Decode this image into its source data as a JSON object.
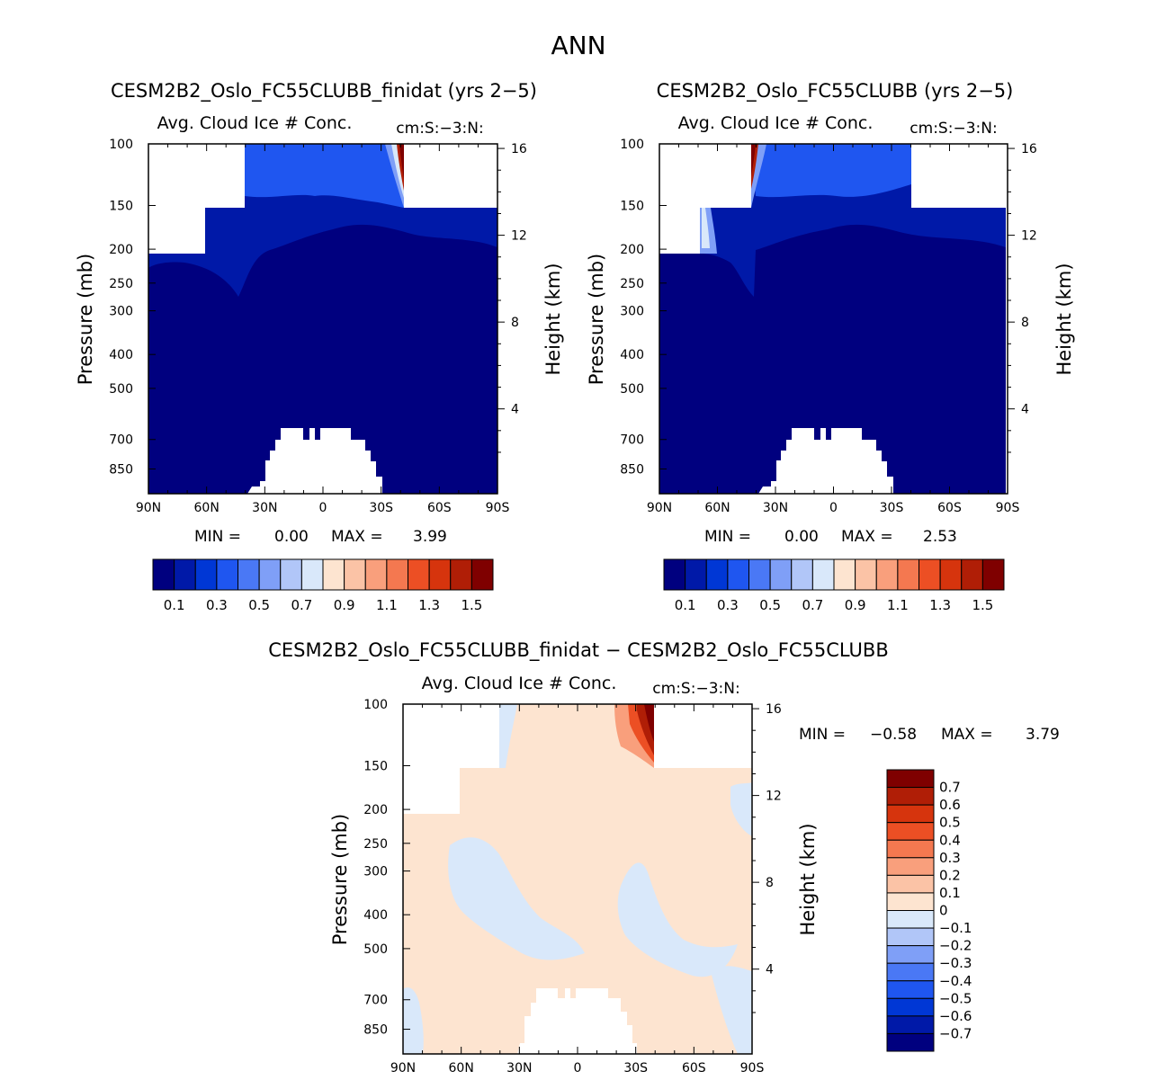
{
  "figure_title": "ANN",
  "chart_data": [
    {
      "type": "heatmap",
      "name": "panel-left",
      "case_title": "CESM2B2_Oslo_FC55CLUBB_finidat (yrs 2−5)",
      "title": "Avg. Cloud Ice # Conc.",
      "units": "cm:S:−3:N:",
      "ylabel": "Pressure (mb)",
      "ylabel_right": "Height (km)",
      "x_ticks": [
        "90N",
        "60N",
        "30N",
        "0",
        "30S",
        "60S",
        "90S"
      ],
      "xlim": [
        90,
        -90
      ],
      "p_ticks": [
        100,
        150,
        200,
        250,
        300,
        400,
        500,
        700,
        850
      ],
      "plim": [
        100,
        1000
      ],
      "z_ticks": [
        16,
        12,
        8,
        4
      ],
      "min_label": "MIN =",
      "min_value": "0.00",
      "max_label": "MAX =",
      "max_value": "3.99",
      "colorbar_labels": [
        "0.1",
        "0.3",
        "0.5",
        "0.7",
        "0.9",
        "1.1",
        "1.3",
        "1.5"
      ],
      "colors": [
        "#00007f",
        "#0019a8",
        "#0037d5",
        "#1f56f0",
        "#4a78f5",
        "#7f9ff7",
        "#b1c6f8",
        "#d9e8fa",
        "#fde4d0",
        "#fbc3a6",
        "#f99f7c",
        "#f47850",
        "#ec4f24",
        "#d6340d",
        "#b01e06",
        "#7f0000"
      ]
    },
    {
      "type": "heatmap",
      "name": "panel-right",
      "case_title": "CESM2B2_Oslo_FC55CLUBB (yrs 2−5)",
      "title": "Avg. Cloud Ice # Conc.",
      "units": "cm:S:−3:N:",
      "ylabel": "Pressure (mb)",
      "ylabel_right": "Height (km)",
      "x_ticks": [
        "90N",
        "60N",
        "30N",
        "0",
        "30S",
        "60S",
        "90S"
      ],
      "xlim": [
        90,
        -90
      ],
      "p_ticks": [
        100,
        150,
        200,
        250,
        300,
        400,
        500,
        700,
        850
      ],
      "plim": [
        100,
        1000
      ],
      "z_ticks": [
        16,
        12,
        8,
        4
      ],
      "min_label": "MIN =",
      "min_value": "0.00",
      "max_label": "MAX =",
      "max_value": "2.53",
      "colorbar_labels": [
        "0.1",
        "0.3",
        "0.5",
        "0.7",
        "0.9",
        "1.1",
        "1.3",
        "1.5"
      ],
      "colors": [
        "#00007f",
        "#0019a8",
        "#0037d5",
        "#1f56f0",
        "#4a78f5",
        "#7f9ff7",
        "#b1c6f8",
        "#d9e8fa",
        "#fde4d0",
        "#fbc3a6",
        "#f99f7c",
        "#f47850",
        "#ec4f24",
        "#d6340d",
        "#b01e06",
        "#7f0000"
      ]
    },
    {
      "type": "heatmap",
      "name": "panel-diff",
      "case_title": "CESM2B2_Oslo_FC55CLUBB_finidat − CESM2B2_Oslo_FC55CLUBB",
      "title": "Avg. Cloud Ice # Conc.",
      "units": "cm:S:−3:N:",
      "ylabel": "Pressure (mb)",
      "ylabel_right": "Height (km)",
      "x_ticks": [
        "90N",
        "60N",
        "30N",
        "0",
        "30S",
        "60S",
        "90S"
      ],
      "xlim": [
        90,
        -90
      ],
      "p_ticks": [
        100,
        150,
        200,
        250,
        300,
        400,
        500,
        700,
        850
      ],
      "plim": [
        100,
        1000
      ],
      "z_ticks": [
        16,
        12,
        8,
        4
      ],
      "min_label": "MIN =",
      "min_value": "−0.58",
      "max_label": "MAX =",
      "max_value": "3.79",
      "colorbar_labels": [
        "0.7",
        "0.6",
        "0.5",
        "0.4",
        "0.3",
        "0.2",
        "0.1",
        "0",
        "−0.1",
        "−0.2",
        "−0.3",
        "−0.4",
        "−0.5",
        "−0.6",
        "−0.7"
      ],
      "colors": [
        "#7f0000",
        "#b01e06",
        "#d6340d",
        "#ec4f24",
        "#f47850",
        "#f99f7c",
        "#fbc3a6",
        "#fde4d0",
        "#d9e8fa",
        "#b1c6f8",
        "#7f9ff7",
        "#4a78f5",
        "#1f56f0",
        "#0037d5",
        "#0019a8",
        "#00007f"
      ]
    }
  ]
}
